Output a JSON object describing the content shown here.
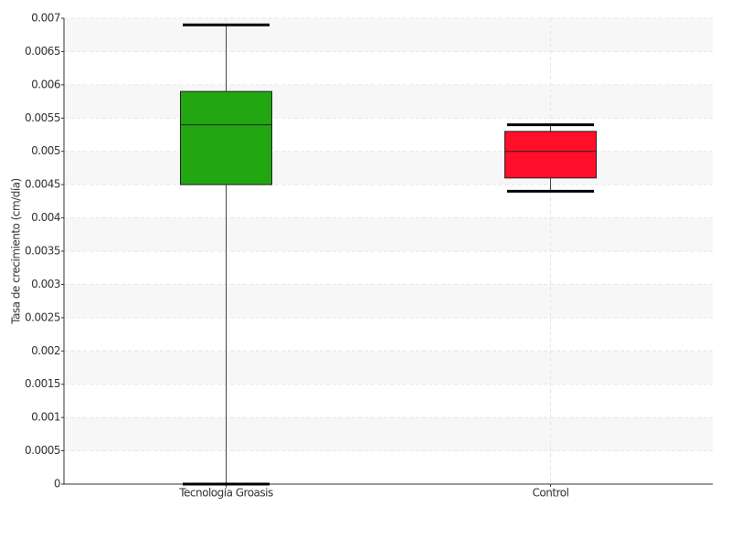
{
  "chart_data": {
    "type": "box",
    "y_label": "Tasa de crecimiento (cm/día)",
    "categories": [
      "Tecnología Groasis",
      "Control"
    ],
    "boxes": [
      {
        "color": "#22a612",
        "min": 0,
        "q1": 0.0045,
        "median": 0.0054,
        "q3": 0.0059,
        "max": 0.0069
      },
      {
        "color": "#ff0f2a",
        "min": 0.0044,
        "q1": 0.0046,
        "median": 0.005,
        "q3": 0.0053,
        "max": 0.0054
      }
    ],
    "ylim": [
      0,
      0.007
    ],
    "yticks": [
      0,
      0.0005,
      0.001,
      0.0015,
      0.002,
      0.0025,
      0.003,
      0.0035,
      0.004,
      0.0045,
      0.005,
      0.0055,
      0.006,
      0.0065,
      0.007
    ],
    "grid": true
  }
}
